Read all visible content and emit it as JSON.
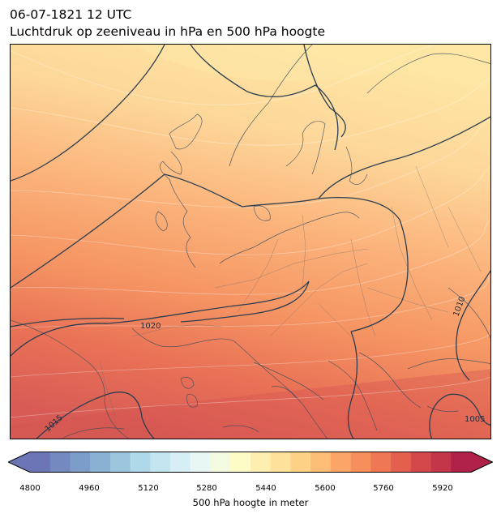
{
  "header": {
    "datetime": "06-07-1821 12 UTC",
    "subtitle": "Luchtdruk op zeeniveau in hPa en 500 hPa hoogte"
  },
  "map": {
    "region": "Europe",
    "filled_field": "500 hPa geopotential height (m)",
    "contour_field": "mean sea level pressure (hPa)",
    "isobar_labels": [
      "1020",
      "1015",
      "1010",
      "1005"
    ],
    "colormap": "RdYlBu_r",
    "line_color": "#2c3e50"
  },
  "colorbar": {
    "label": "500 hPa hoogte in meter",
    "min": 4800,
    "max": 5980,
    "ticks": [
      "4800",
      "4960",
      "5120",
      "5280",
      "5440",
      "5600",
      "5760",
      "5920"
    ],
    "extend": "both",
    "colors": [
      "#6c75b6",
      "#7489bf",
      "#7d9dc9",
      "#88b1d2",
      "#9cc6dd",
      "#afd8e8",
      "#c3e5ef",
      "#d7eff4",
      "#e8f6f4",
      "#f4fadf",
      "#fefcc6",
      "#feefb0",
      "#fee19a",
      "#fdd186",
      "#fcbd76",
      "#fba668",
      "#f68f5c",
      "#ee7754",
      "#e3604e",
      "#d4484b",
      "#c33549",
      "#b0214a"
    ]
  }
}
